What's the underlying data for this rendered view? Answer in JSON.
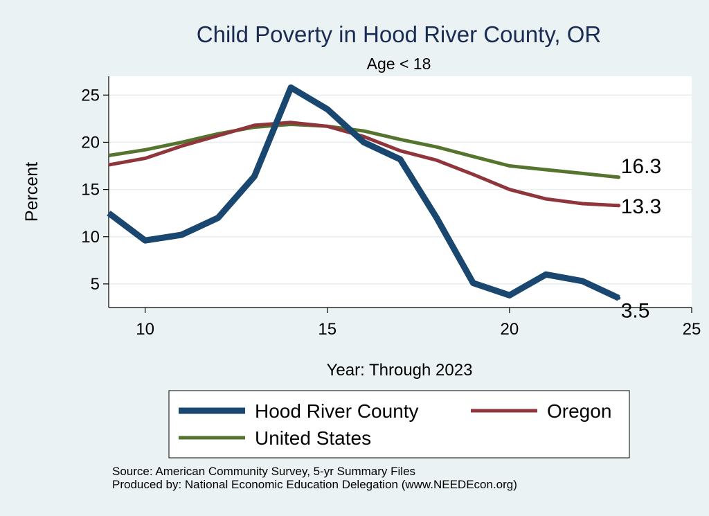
{
  "chart_data": {
    "type": "line",
    "title": "Child Poverty in Hood River County, OR",
    "subtitle": "Age < 18",
    "xlabel": "Year: Through 2023",
    "ylabel": "Percent",
    "xlim": [
      9,
      25
    ],
    "ylim": [
      2.5,
      27
    ],
    "x_ticks": [
      10,
      15,
      20,
      25
    ],
    "y_ticks": [
      5,
      10,
      15,
      20,
      25
    ],
    "grid": true,
    "legend_position": "bottom",
    "series": [
      {
        "name": "Hood River County",
        "color": "#1a476f",
        "x": [
          9,
          10,
          11,
          12,
          13,
          14,
          15,
          16,
          17,
          18,
          19,
          20,
          21,
          22,
          23
        ],
        "values": [
          12.5,
          9.6,
          10.2,
          12.0,
          16.4,
          25.8,
          23.5,
          20.0,
          18.2,
          12.0,
          5.1,
          3.8,
          6.0,
          5.3,
          3.5
        ],
        "end_label": "3.5"
      },
      {
        "name": "Oregon",
        "color": "#90353b",
        "x": [
          9,
          10,
          11,
          12,
          13,
          14,
          15,
          16,
          17,
          18,
          19,
          20,
          21,
          22,
          23
        ],
        "values": [
          17.6,
          18.3,
          19.6,
          20.7,
          21.8,
          22.1,
          21.7,
          20.6,
          19.1,
          18.1,
          16.6,
          15.0,
          14.0,
          13.5,
          13.3
        ],
        "end_label": "13.3"
      },
      {
        "name": "United States",
        "color": "#55752f",
        "x": [
          9,
          10,
          11,
          12,
          13,
          14,
          15,
          16,
          17,
          18,
          19,
          20,
          21,
          22,
          23
        ],
        "values": [
          18.6,
          19.2,
          20.0,
          20.9,
          21.6,
          21.9,
          21.7,
          21.2,
          20.3,
          19.5,
          18.5,
          17.5,
          17.1,
          16.7,
          16.3
        ],
        "end_label": "16.3"
      }
    ],
    "legend_order": [
      0,
      1,
      2
    ]
  },
  "notes": {
    "source": "Source: American Community Survey, 5-yr Summary Files",
    "produced_by": "Produced by: National Economic Education Delegation (www.NEEDEcon.org)"
  }
}
